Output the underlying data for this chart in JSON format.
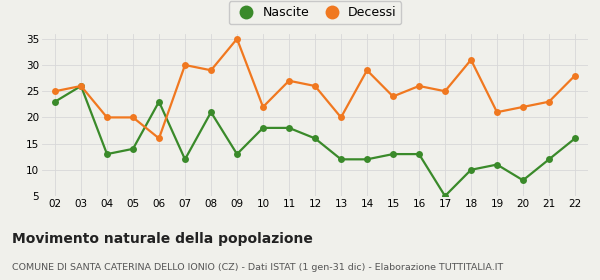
{
  "years": [
    "02",
    "03",
    "04",
    "05",
    "06",
    "07",
    "08",
    "09",
    "10",
    "11",
    "12",
    "13",
    "14",
    "15",
    "16",
    "17",
    "18",
    "19",
    "20",
    "21",
    "22"
  ],
  "nascite": [
    23,
    26,
    13,
    14,
    23,
    12,
    21,
    13,
    18,
    18,
    16,
    12,
    12,
    13,
    13,
    5,
    10,
    11,
    8,
    12,
    16
  ],
  "decessi": [
    25,
    26,
    20,
    20,
    16,
    30,
    29,
    35,
    22,
    27,
    26,
    20,
    29,
    24,
    26,
    25,
    31,
    21,
    22,
    23,
    28
  ],
  "nascite_color": "#3a8a2a",
  "decessi_color": "#f07820",
  "background_color": "#f0f0eb",
  "grid_color": "#d8d8d8",
  "title": "Movimento naturale della popolazione",
  "subtitle": "COMUNE DI SANTA CATERINA DELLO IONIO (CZ) - Dati ISTAT (1 gen-31 dic) - Elaborazione TUTTITALIA.IT",
  "legend_nascite": "Nascite",
  "legend_decessi": "Decessi",
  "ylim_min": 5,
  "ylim_max": 36,
  "yticks": [
    5,
    10,
    15,
    20,
    25,
    30,
    35
  ],
  "marker_size": 5,
  "linewidth": 1.6,
  "tick_fontsize": 7.5,
  "legend_fontsize": 9,
  "title_fontsize": 10,
  "subtitle_fontsize": 6.8
}
